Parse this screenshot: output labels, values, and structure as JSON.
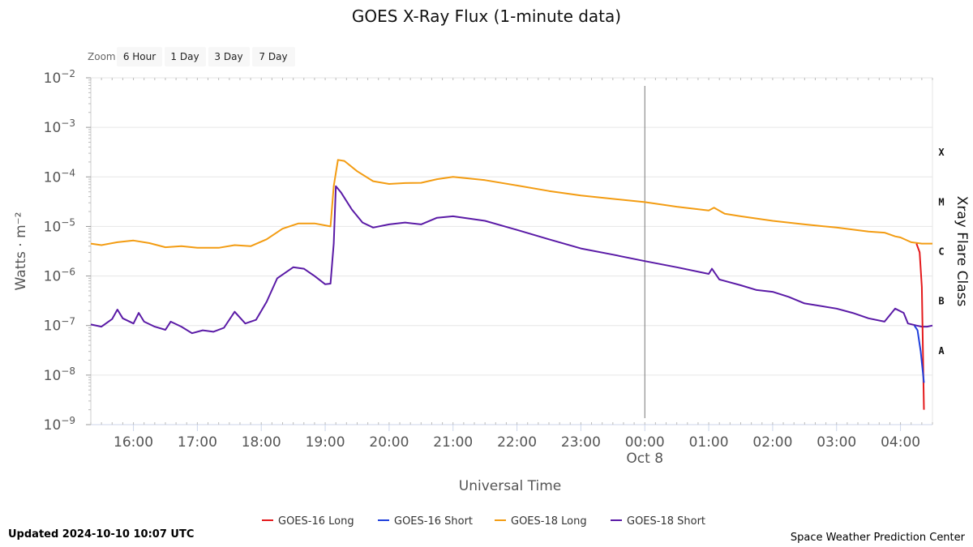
{
  "zoom": {
    "label": "Zoom",
    "buttons": [
      "6 Hour",
      "1 Day",
      "3 Day",
      "7 Day"
    ]
  },
  "footer": {
    "updated": "Updated 2024-10-10 10:07 UTC",
    "credit": "Space Weather Prediction Center"
  },
  "colors": {
    "goes16_long": "#e41a1c",
    "goes16_short": "#1f3fdc",
    "goes18_long": "#f39c12",
    "goes18_short": "#5a1aa6"
  },
  "chart_data": {
    "type": "line",
    "title": "GOES X-Ray Flux (1-minute data)",
    "xlabel": "Universal Time",
    "ylabel": "Watts · m⁻²",
    "y2label": "Xray Flare Class",
    "yscale": "log",
    "ylim": [
      1e-09,
      0.01
    ],
    "xlim": [
      "15:20",
      "04:30"
    ],
    "x_ticks": [
      "16:00",
      "17:00",
      "18:00",
      "19:00",
      "20:00",
      "21:00",
      "22:00",
      "23:00",
      "00:00",
      "01:00",
      "02:00",
      "03:00",
      "04:00"
    ],
    "x_date_label": {
      "at": "00:00",
      "text": "Oct 8"
    },
    "y_ticks": [
      {
        "base": "10",
        "exp": "−2",
        "value": 0.01
      },
      {
        "base": "10",
        "exp": "−3",
        "value": 0.001
      },
      {
        "base": "10",
        "exp": "−4",
        "value": 0.0001
      },
      {
        "base": "10",
        "exp": "−5",
        "value": 1e-05
      },
      {
        "base": "10",
        "exp": "−6",
        "value": 1e-06
      },
      {
        "base": "10",
        "exp": "−7",
        "value": 1e-07
      },
      {
        "base": "10",
        "exp": "−8",
        "value": 1e-08
      },
      {
        "base": "10",
        "exp": "−9",
        "value": 1e-09
      }
    ],
    "flare_classes": [
      {
        "label": "X",
        "value": 0.00031
      },
      {
        "label": "M",
        "value": 3.1e-05
      },
      {
        "label": "C",
        "value": 3.1e-06
      },
      {
        "label": "B",
        "value": 3.1e-07
      },
      {
        "label": "A",
        "value": 3.1e-08
      }
    ],
    "vertical_marker": "00:00",
    "grid": true,
    "legend_position": "bottom",
    "series": [
      {
        "name": "GOES-16 Long",
        "points": [
          [
            "04:15",
            4.5e-06
          ],
          [
            "04:18",
            3e-06
          ],
          [
            "04:20",
            6e-07
          ],
          [
            "04:22",
            2e-09
          ]
        ]
      },
      {
        "name": "GOES-16 Short",
        "points": [
          [
            "04:13",
            1e-07
          ],
          [
            "04:16",
            8e-08
          ],
          [
            "04:19",
            3e-08
          ],
          [
            "04:22",
            7e-09
          ]
        ]
      },
      {
        "name": "GOES-18 Long",
        "points": [
          [
            "15:20",
            4.5e-06
          ],
          [
            "15:30",
            4.2e-06
          ],
          [
            "15:45",
            4.8e-06
          ],
          [
            "16:00",
            5.2e-06
          ],
          [
            "16:15",
            4.6e-06
          ],
          [
            "16:30",
            3.8e-06
          ],
          [
            "16:45",
            4e-06
          ],
          [
            "17:00",
            3.7e-06
          ],
          [
            "17:20",
            3.7e-06
          ],
          [
            "17:35",
            4.2e-06
          ],
          [
            "17:50",
            4e-06
          ],
          [
            "18:05",
            5.5e-06
          ],
          [
            "18:20",
            9e-06
          ],
          [
            "18:35",
            1.15e-05
          ],
          [
            "18:50",
            1.15e-05
          ],
          [
            "19:05",
            1e-05
          ],
          [
            "19:08",
            6.5e-05
          ],
          [
            "19:12",
            0.00022
          ],
          [
            "19:18",
            0.00021
          ],
          [
            "19:30",
            0.00013
          ],
          [
            "19:45",
            8.2e-05
          ],
          [
            "20:00",
            7.2e-05
          ],
          [
            "20:15",
            7.5e-05
          ],
          [
            "20:30",
            7.6e-05
          ],
          [
            "20:45",
            9e-05
          ],
          [
            "21:00",
            0.0001
          ],
          [
            "21:30",
            8.6e-05
          ],
          [
            "22:00",
            6.7e-05
          ],
          [
            "22:30",
            5.2e-05
          ],
          [
            "23:00",
            4.2e-05
          ],
          [
            "23:30",
            3.6e-05
          ],
          [
            "00:00",
            3.1e-05
          ],
          [
            "00:30",
            2.5e-05
          ],
          [
            "01:00",
            2.1e-05
          ],
          [
            "01:05",
            2.4e-05
          ],
          [
            "01:15",
            1.8e-05
          ],
          [
            "01:30",
            1.6e-05
          ],
          [
            "02:00",
            1.3e-05
          ],
          [
            "02:30",
            1.1e-05
          ],
          [
            "03:00",
            9.5e-06
          ],
          [
            "03:30",
            7.9e-06
          ],
          [
            "03:45",
            7.5e-06
          ],
          [
            "03:55",
            6.3e-06
          ],
          [
            "04:00",
            6e-06
          ],
          [
            "04:10",
            4.8e-06
          ],
          [
            "04:20",
            4.5e-06
          ],
          [
            "04:30",
            4.5e-06
          ]
        ]
      },
      {
        "name": "GOES-18 Short",
        "points": [
          [
            "15:20",
            1.05e-07
          ],
          [
            "15:30",
            9.5e-08
          ],
          [
            "15:40",
            1.35e-07
          ],
          [
            "15:45",
            2.1e-07
          ],
          [
            "15:50",
            1.4e-07
          ],
          [
            "16:00",
            1.1e-07
          ],
          [
            "16:05",
            1.8e-07
          ],
          [
            "16:10",
            1.2e-07
          ],
          [
            "16:20",
            9.5e-08
          ],
          [
            "16:30",
            8.2e-08
          ],
          [
            "16:35",
            1.2e-07
          ],
          [
            "16:45",
            9.5e-08
          ],
          [
            "16:55",
            7e-08
          ],
          [
            "17:05",
            8e-08
          ],
          [
            "17:15",
            7.5e-08
          ],
          [
            "17:25",
            9e-08
          ],
          [
            "17:35",
            1.9e-07
          ],
          [
            "17:45",
            1.1e-07
          ],
          [
            "17:55",
            1.3e-07
          ],
          [
            "18:05",
            3e-07
          ],
          [
            "18:15",
            9e-07
          ],
          [
            "18:30",
            1.5e-06
          ],
          [
            "18:40",
            1.4e-06
          ],
          [
            "18:50",
            1e-06
          ],
          [
            "19:00",
            6.8e-07
          ],
          [
            "19:05",
            7e-07
          ],
          [
            "19:08",
            4.5e-06
          ],
          [
            "19:10",
            6.5e-05
          ],
          [
            "19:15",
            4.8e-05
          ],
          [
            "19:25",
            2.2e-05
          ],
          [
            "19:35",
            1.2e-05
          ],
          [
            "19:45",
            9.5e-06
          ],
          [
            "20:00",
            1.1e-05
          ],
          [
            "20:15",
            1.2e-05
          ],
          [
            "20:30",
            1.1e-05
          ],
          [
            "20:45",
            1.5e-05
          ],
          [
            "21:00",
            1.6e-05
          ],
          [
            "21:30",
            1.3e-05
          ],
          [
            "22:00",
            8.5e-06
          ],
          [
            "22:30",
            5.5e-06
          ],
          [
            "23:00",
            3.6e-06
          ],
          [
            "23:30",
            2.7e-06
          ],
          [
            "00:00",
            2e-06
          ],
          [
            "00:30",
            1.5e-06
          ],
          [
            "01:00",
            1.1e-06
          ],
          [
            "01:03",
            1.4e-06
          ],
          [
            "01:10",
            8.5e-07
          ],
          [
            "01:30",
            6.5e-07
          ],
          [
            "01:45",
            5.2e-07
          ],
          [
            "02:00",
            4.8e-07
          ],
          [
            "02:15",
            3.8e-07
          ],
          [
            "02:30",
            2.8e-07
          ],
          [
            "03:00",
            2.2e-07
          ],
          [
            "03:15",
            1.8e-07
          ],
          [
            "03:30",
            1.4e-07
          ],
          [
            "03:45",
            1.2e-07
          ],
          [
            "03:55",
            2.2e-07
          ],
          [
            "04:03",
            1.8e-07
          ],
          [
            "04:07",
            1.1e-07
          ],
          [
            "04:15",
            1e-07
          ],
          [
            "04:20",
            9.5e-08
          ],
          [
            "04:25",
            9.5e-08
          ],
          [
            "04:30",
            1e-07
          ]
        ]
      }
    ]
  }
}
